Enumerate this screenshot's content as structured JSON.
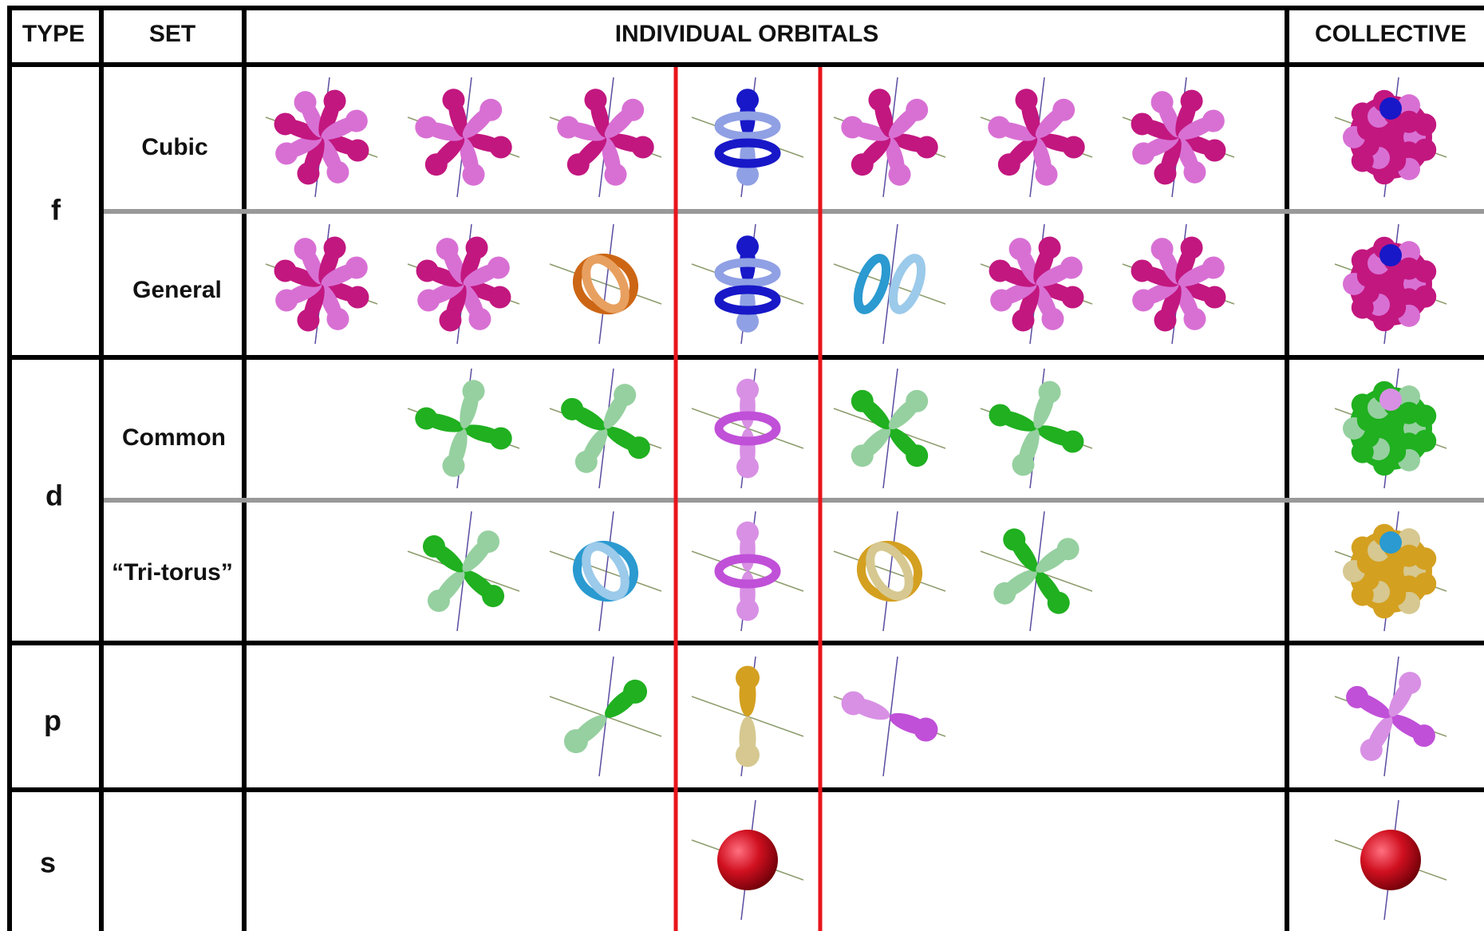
{
  "header": {
    "type": "TYPE",
    "set": "SET",
    "individual": "INDIVIDUAL ORBITALS",
    "collective": "COLLECTIVE"
  },
  "rows": [
    {
      "type": "f",
      "sets": [
        "Cubic",
        "General"
      ]
    },
    {
      "type": "d",
      "sets": [
        "Common",
        "“Tri-torus”"
      ]
    },
    {
      "type": "p"
    },
    {
      "type": "s"
    }
  ]
}
